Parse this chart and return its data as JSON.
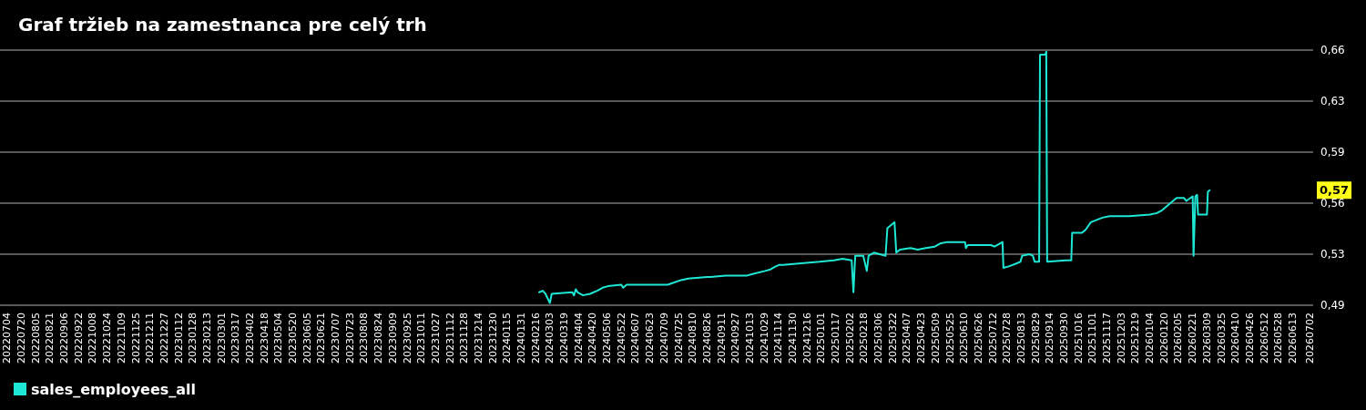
{
  "chart_data": {
    "type": "line",
    "title": "Graf tržieb na zamestnanca pre celý trh",
    "series": [
      {
        "name": "sales_employees_all",
        "color": "#1ee8d5",
        "x": [
          "2024-02-20",
          "2024-02-24",
          "2024-02-27",
          "2024-03-03",
          "2024-03-05",
          "2024-03-28",
          "2024-03-30",
          "2024-04-01",
          "2024-04-03",
          "2024-04-09",
          "2024-04-17",
          "2024-04-25",
          "2024-05-01",
          "2024-05-07",
          "2024-05-22",
          "2024-05-24",
          "2024-05-28",
          "2024-07-13",
          "2024-07-18",
          "2024-07-28",
          "2024-08-05",
          "2024-08-26",
          "2024-08-30",
          "2024-09-16",
          "2024-10-10",
          "2024-10-16",
          "2024-10-30",
          "2024-11-05",
          "2024-11-11",
          "2024-11-15",
          "2024-11-19",
          "2024-12-30",
          "2025-01-15",
          "2025-01-25",
          "2025-02-04",
          "2025-02-06",
          "2025-02-08",
          "2025-02-17",
          "2025-02-21",
          "2025-02-23",
          "2025-03-01",
          "2025-03-14",
          "2025-03-16",
          "2025-03-22",
          "2025-03-24",
          "2025-03-26",
          "2025-03-30",
          "2025-04-11",
          "2025-04-19",
          "2025-04-28",
          "2025-05-08",
          "2025-05-14",
          "2025-05-22",
          "2025-05-28",
          "2025-06-11",
          "2025-06-12",
          "2025-06-14",
          "2025-06-18",
          "2025-07-10",
          "2025-07-14",
          "2025-07-20",
          "2025-07-23",
          "2025-07-24",
          "2025-07-30",
          "2025-08-08",
          "2025-08-12",
          "2025-08-14",
          "2025-08-22",
          "2025-08-26",
          "2025-08-28",
          "2025-09-02",
          "2025-09-03",
          "2025-09-09",
          "2025-09-10",
          "2025-09-11",
          "2025-10-02",
          "2025-10-08",
          "2025-10-09",
          "2025-10-20",
          "2025-10-24",
          "2025-10-30",
          "2025-11-12",
          "2025-11-20",
          "2025-12-12",
          "2026-01-04",
          "2026-01-12",
          "2026-01-18",
          "2026-02-03",
          "2026-02-11",
          "2026-02-14",
          "2026-02-21",
          "2026-02-22",
          "2026-02-24",
          "2026-02-26",
          "2026-02-27",
          "2026-03-09",
          "2026-03-10",
          "2026-03-12"
        ],
        "values": [
          0.501,
          0.502,
          0.5,
          0.494,
          0.5,
          0.501,
          0.499,
          0.503,
          0.501,
          0.499,
          0.5,
          0.502,
          0.504,
          0.505,
          0.506,
          0.504,
          0.506,
          0.506,
          0.507,
          0.509,
          0.51,
          0.511,
          0.511,
          0.512,
          0.512,
          0.513,
          0.515,
          0.516,
          0.518,
          0.519,
          0.519,
          0.521,
          0.522,
          0.523,
          0.522,
          0.501,
          0.525,
          0.525,
          0.515,
          0.525,
          0.527,
          0.525,
          0.543,
          0.546,
          0.547,
          0.527,
          0.529,
          0.53,
          0.529,
          0.53,
          0.531,
          0.533,
          0.534,
          0.534,
          0.534,
          0.53,
          0.532,
          0.532,
          0.532,
          0.531,
          0.533,
          0.534,
          0.517,
          0.518,
          0.52,
          0.521,
          0.525,
          0.526,
          0.525,
          0.521,
          0.521,
          0.657,
          0.657,
          0.659,
          0.521,
          0.522,
          0.522,
          0.54,
          0.54,
          0.542,
          0.547,
          0.55,
          0.551,
          0.551,
          0.552,
          0.553,
          0.555,
          0.563,
          0.563,
          0.561,
          0.564,
          0.525,
          0.564,
          0.565,
          0.552,
          0.552,
          0.567,
          0.568
        ]
      }
    ],
    "xlim": [
      "2022-06-26",
      "2026-07-06"
    ],
    "xticks": [
      {
        "value": "2022-07-04",
        "label": "20220704"
      },
      {
        "value": "2022-07-20",
        "label": "20220720"
      },
      {
        "value": "2022-08-05",
        "label": "20220805"
      },
      {
        "value": "2022-08-21",
        "label": "20220821"
      },
      {
        "value": "2022-09-06",
        "label": "20220906"
      },
      {
        "value": "2022-09-22",
        "label": "20220922"
      },
      {
        "value": "2022-10-08",
        "label": "20221008"
      },
      {
        "value": "2022-10-24",
        "label": "20221024"
      },
      {
        "value": "2022-11-09",
        "label": "20221109"
      },
      {
        "value": "2022-11-25",
        "label": "20221125"
      },
      {
        "value": "2022-12-11",
        "label": "20221211"
      },
      {
        "value": "2022-12-27",
        "label": "20221227"
      },
      {
        "value": "2023-01-12",
        "label": "20230112"
      },
      {
        "value": "2023-01-28",
        "label": "20230128"
      },
      {
        "value": "2023-02-13",
        "label": "20230213"
      },
      {
        "value": "2023-03-01",
        "label": "20230301"
      },
      {
        "value": "2023-03-17",
        "label": "20230317"
      },
      {
        "value": "2023-04-02",
        "label": "20230402"
      },
      {
        "value": "2023-04-18",
        "label": "20230418"
      },
      {
        "value": "2023-05-04",
        "label": "20230504"
      },
      {
        "value": "2023-05-20",
        "label": "20230520"
      },
      {
        "value": "2023-06-05",
        "label": "20230605"
      },
      {
        "value": "2023-06-21",
        "label": "20230621"
      },
      {
        "value": "2023-07-07",
        "label": "20230707"
      },
      {
        "value": "2023-07-23",
        "label": "20230723"
      },
      {
        "value": "2023-08-08",
        "label": "20230808"
      },
      {
        "value": "2023-08-24",
        "label": "20230824"
      },
      {
        "value": "2023-09-09",
        "label": "20230909"
      },
      {
        "value": "2023-09-25",
        "label": "20230925"
      },
      {
        "value": "2023-10-11",
        "label": "20231011"
      },
      {
        "value": "2023-10-27",
        "label": "20231027"
      },
      {
        "value": "2023-11-12",
        "label": "20231112"
      },
      {
        "value": "2023-11-28",
        "label": "20231128"
      },
      {
        "value": "2023-12-14",
        "label": "20231214"
      },
      {
        "value": "2023-12-30",
        "label": "20231230"
      },
      {
        "value": "2024-01-15",
        "label": "20240115"
      },
      {
        "value": "2024-01-31",
        "label": "20240131"
      },
      {
        "value": "2024-02-16",
        "label": "20240216"
      },
      {
        "value": "2024-03-03",
        "label": "20240303"
      },
      {
        "value": "2024-03-19",
        "label": "20240319"
      },
      {
        "value": "2024-04-04",
        "label": "20240404"
      },
      {
        "value": "2024-04-20",
        "label": "20240420"
      },
      {
        "value": "2024-05-06",
        "label": "20240506"
      },
      {
        "value": "2024-05-22",
        "label": "20240522"
      },
      {
        "value": "2024-06-07",
        "label": "20240607"
      },
      {
        "value": "2024-06-23",
        "label": "20240623"
      },
      {
        "value": "2024-07-09",
        "label": "20240709"
      },
      {
        "value": "2024-07-25",
        "label": "20240725"
      },
      {
        "value": "2024-08-10",
        "label": "20240810"
      },
      {
        "value": "2024-08-26",
        "label": "20240826"
      },
      {
        "value": "2024-09-11",
        "label": "20240911"
      },
      {
        "value": "2024-09-27",
        "label": "20240927"
      },
      {
        "value": "2024-10-13",
        "label": "20241013"
      },
      {
        "value": "2024-10-29",
        "label": "20241029"
      },
      {
        "value": "2024-11-14",
        "label": "20241114"
      },
      {
        "value": "2024-11-30",
        "label": "20241130"
      },
      {
        "value": "2024-12-16",
        "label": "20241216"
      },
      {
        "value": "2025-01-01",
        "label": "20250101"
      },
      {
        "value": "2025-01-17",
        "label": "20250117"
      },
      {
        "value": "2025-02-02",
        "label": "20250202"
      },
      {
        "value": "2025-02-18",
        "label": "20250218"
      },
      {
        "value": "2025-03-06",
        "label": "20250306"
      },
      {
        "value": "2025-03-22",
        "label": "20250322"
      },
      {
        "value": "2025-04-07",
        "label": "20250407"
      },
      {
        "value": "2025-04-23",
        "label": "20250423"
      },
      {
        "value": "2025-05-09",
        "label": "20250509"
      },
      {
        "value": "2025-05-25",
        "label": "20250525"
      },
      {
        "value": "2025-06-10",
        "label": "20250610"
      },
      {
        "value": "2025-06-26",
        "label": "20250626"
      },
      {
        "value": "2025-07-12",
        "label": "20250712"
      },
      {
        "value": "2025-07-28",
        "label": "20250728"
      },
      {
        "value": "2025-08-13",
        "label": "20250813"
      },
      {
        "value": "2025-08-29",
        "label": "20250829"
      },
      {
        "value": "2025-09-14",
        "label": "20250914"
      },
      {
        "value": "2025-09-30",
        "label": "20250930"
      },
      {
        "value": "2025-10-16",
        "label": "20251016"
      },
      {
        "value": "2025-11-01",
        "label": "20251101"
      },
      {
        "value": "2025-11-17",
        "label": "20251117"
      },
      {
        "value": "2025-12-03",
        "label": "20251203"
      },
      {
        "value": "2025-12-19",
        "label": "20251219"
      },
      {
        "value": "2026-01-04",
        "label": "20260104"
      },
      {
        "value": "2026-01-20",
        "label": "20260120"
      },
      {
        "value": "2026-02-05",
        "label": "20260205"
      },
      {
        "value": "2026-02-21",
        "label": "20260221"
      },
      {
        "value": "2026-03-09",
        "label": "20260309"
      },
      {
        "value": "2026-03-25",
        "label": "20260325"
      },
      {
        "value": "2026-04-10",
        "label": "20260410"
      },
      {
        "value": "2026-04-26",
        "label": "20260426"
      },
      {
        "value": "2026-05-12",
        "label": "20260512"
      },
      {
        "value": "2026-05-28",
        "label": "20260528"
      },
      {
        "value": "2026-06-13",
        "label": "20260613"
      },
      {
        "value": "2026-07-02",
        "label": "20260702"
      }
    ],
    "ylim": [
      0.4925,
      0.66
    ],
    "yticks": [
      {
        "value": 0.4925,
        "label": "0,49"
      },
      {
        "value": 0.526,
        "label": "0,53"
      },
      {
        "value": 0.5595,
        "label": "0,56"
      },
      {
        "value": 0.593,
        "label": "0,59"
      },
      {
        "value": 0.6265,
        "label": "0,63"
      },
      {
        "value": 0.66,
        "label": "0,66"
      }
    ],
    "annotations": [
      "0,57"
    ],
    "grid": "y",
    "legend": "bottom left",
    "marker": "none",
    "line_style": "solid"
  }
}
